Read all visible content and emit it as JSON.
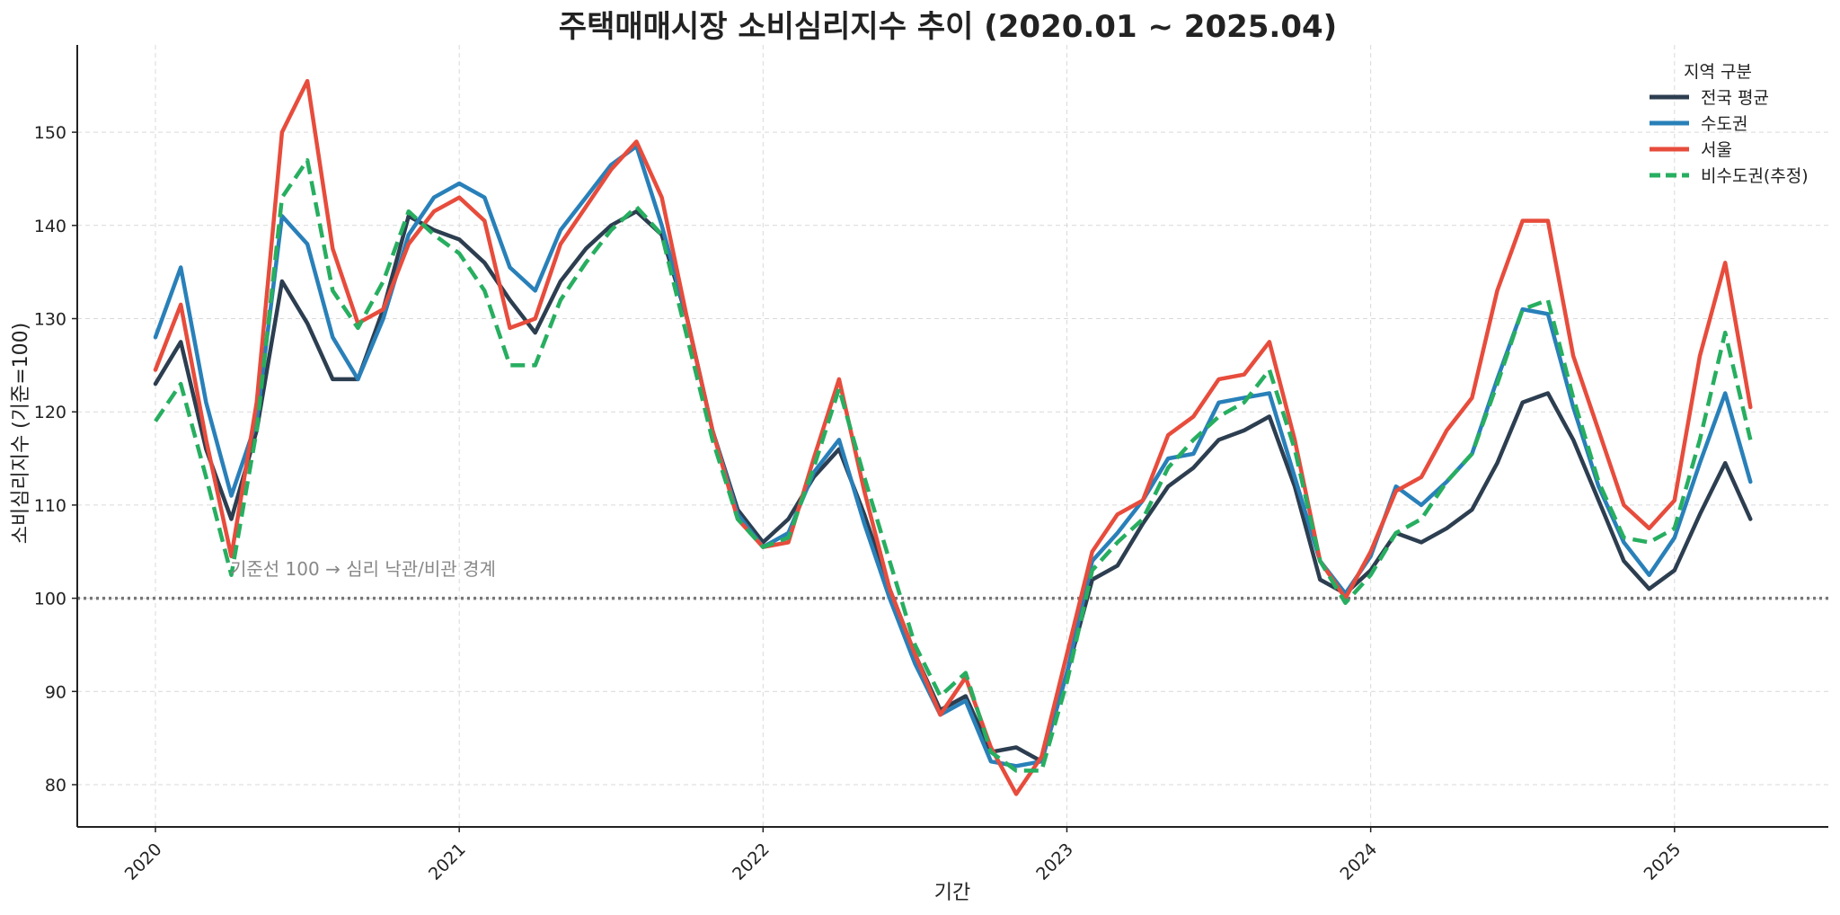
{
  "chart_data": {
    "type": "line",
    "title": "주택매매시장 소비심리지수 추이 (2020.01 ~ 2025.04)",
    "xlabel": "기간",
    "ylabel": "소비심리지수 (기준=100)",
    "x_start": "2020-01",
    "x_end": "2025-04",
    "x_ticks": [
      "2020",
      "2021",
      "2022",
      "2023",
      "2024",
      "2025"
    ],
    "y_ticks": [
      80,
      90,
      100,
      110,
      120,
      130,
      140,
      150
    ],
    "ylim": [
      75,
      160
    ],
    "grid": true,
    "legend": {
      "title": "지역 구분",
      "placement": "top-right"
    },
    "reference_line": {
      "value": 100,
      "label": "기준선 100 → 심리 낙관/비관 경계"
    },
    "series": [
      {
        "name": "전국 평균",
        "color": "#2c3e50",
        "dash": "solid",
        "values": [
          123,
          127.5,
          116,
          108.5,
          118,
          134,
          129.5,
          123.5,
          123.5,
          131,
          141,
          139.5,
          138.5,
          136,
          132,
          128.5,
          134,
          137.5,
          140,
          141.5,
          139,
          130,
          118,
          109.5,
          106,
          108.5,
          113,
          116,
          109,
          101,
          94,
          88,
          89.5,
          83.5,
          84,
          82.5,
          92,
          102,
          103.5,
          108,
          112,
          114,
          117,
          118,
          119.5,
          112,
          102,
          100.5,
          103,
          107,
          106,
          107.5,
          109.5,
          114.5,
          121,
          122,
          117,
          110.5,
          104,
          101,
          103,
          109,
          114.5,
          108.5
        ]
      },
      {
        "name": "수도권",
        "color": "#2980b9",
        "dash": "solid",
        "values": [
          128,
          135.5,
          121,
          111,
          119,
          141,
          138,
          128,
          123.5,
          130,
          139,
          143,
          144.5,
          143,
          135.5,
          133,
          139.5,
          143,
          146.5,
          148.5,
          140,
          130,
          118,
          109,
          105.5,
          107,
          113.5,
          117,
          108,
          100,
          93,
          87.5,
          89,
          82.5,
          82,
          82.5,
          92,
          104,
          107,
          110.5,
          115,
          115.5,
          121,
          121.5,
          122,
          113,
          104,
          100.5,
          104.5,
          112,
          110,
          112.5,
          115.5,
          123.5,
          131,
          130.5,
          120.5,
          112,
          106,
          102.5,
          106.5,
          114.5,
          122,
          112.5
        ]
      },
      {
        "name": "서울",
        "color": "#e74c3c",
        "dash": "solid",
        "values": [
          124.5,
          131.5,
          117,
          104.5,
          121,
          150,
          155.5,
          137.5,
          129.5,
          131,
          138,
          141.5,
          143,
          140.5,
          129,
          130,
          138,
          142,
          146,
          149,
          143,
          130,
          118,
          108.5,
          105.5,
          106,
          115,
          123.5,
          111.5,
          101,
          94,
          87.5,
          91.5,
          84,
          79,
          83,
          94,
          105,
          109,
          110.5,
          117.5,
          119.5,
          123.5,
          124,
          127.5,
          117,
          104,
          100,
          105,
          111.5,
          113,
          118,
          121.5,
          133,
          140.5,
          140.5,
          126,
          118,
          110,
          107.5,
          110.5,
          126,
          136,
          120.5
        ]
      },
      {
        "name": "비수도권(추정)",
        "color": "#27ae60",
        "dash": "dashed",
        "values": [
          119,
          123,
          113,
          102.5,
          118,
          143,
          147,
          133,
          129,
          134,
          141.5,
          139,
          137,
          133,
          125,
          125,
          132,
          136,
          139.5,
          142,
          139,
          128,
          117,
          108.5,
          105.5,
          106.5,
          114,
          122.5,
          113,
          104,
          95,
          89.5,
          92,
          83.5,
          81.5,
          81.5,
          91,
          103,
          106,
          108.5,
          114,
          117,
          119.5,
          121,
          124.5,
          116,
          104,
          99.5,
          102.5,
          107,
          108.5,
          112.5,
          115.5,
          123,
          131,
          132,
          121.5,
          112.5,
          106.5,
          106,
          107.5,
          117,
          128.5,
          117
        ]
      }
    ]
  }
}
